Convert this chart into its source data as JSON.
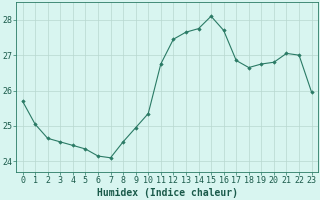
{
  "x": [
    0,
    1,
    2,
    3,
    4,
    5,
    6,
    7,
    8,
    9,
    10,
    11,
    12,
    13,
    14,
    15,
    16,
    17,
    18,
    19,
    20,
    21,
    22,
    23
  ],
  "y": [
    25.7,
    25.05,
    24.65,
    24.55,
    24.45,
    24.35,
    24.15,
    24.1,
    24.55,
    24.95,
    25.35,
    26.75,
    27.45,
    27.65,
    27.75,
    28.1,
    27.7,
    26.85,
    26.65,
    26.75,
    26.8,
    27.05,
    27.0,
    25.95
  ],
  "xlabel": "Humidex (Indice chaleur)",
  "ylim": [
    23.7,
    28.5
  ],
  "xlim": [
    -0.5,
    23.5
  ],
  "yticks": [
    24,
    25,
    26,
    27,
    28
  ],
  "xticks": [
    0,
    1,
    2,
    3,
    4,
    5,
    6,
    7,
    8,
    9,
    10,
    11,
    12,
    13,
    14,
    15,
    16,
    17,
    18,
    19,
    20,
    21,
    22,
    23
  ],
  "line_color": "#2a7a65",
  "marker_color": "#2a7a65",
  "bg_color": "#d8f5f0",
  "grid_color": "#b8d8d0",
  "tick_color": "#2a7a65",
  "label_color": "#1a5a4a",
  "xlabel_fontsize": 7,
  "tick_fontsize": 6,
  "linewidth": 0.8,
  "markersize": 1.8
}
